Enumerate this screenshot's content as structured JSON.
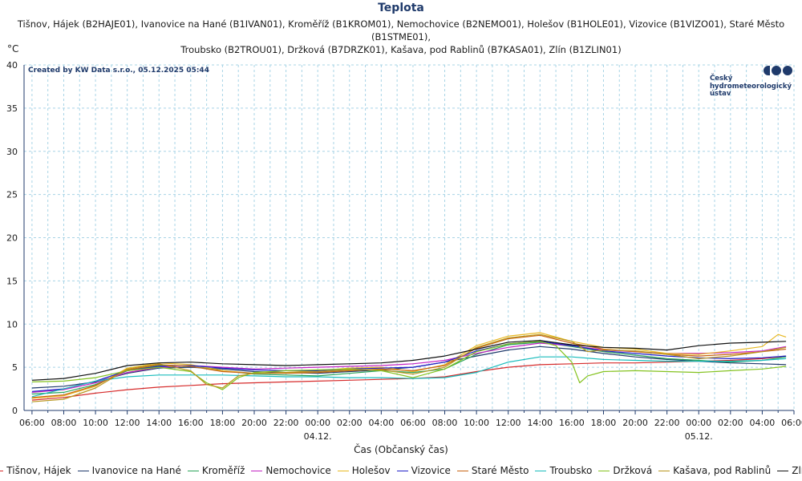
{
  "chart_data": {
    "type": "line",
    "title": "Teplota",
    "subtitle_line1": "Tišnov, Hájek (B2HAJE01), Ivanovice na Hané (B1IVAN01), Kroměříž (B1KROM01), Nemochovice (B2NEMO01), Holešov (B1HOLE01), Vizovice (B1VIZO01), Staré Město (B1STME01),",
    "subtitle_line2": "Troubsko (B2TROU01), Držková (B7DRZK01), Kašava, pod Rablinů (B7KASA01), Zlín (B1ZLIN01)",
    "ylabel": "°C",
    "xlabel": "Čas (Občanský čas)",
    "credit": "Created by KW Data s.r.o., 05.12.2025 05:44",
    "ylim": [
      0,
      40
    ],
    "yticks": [
      "0",
      "5",
      "10",
      "15",
      "20",
      "25",
      "30",
      "35",
      "40"
    ],
    "xlim": [
      5.5,
      54
    ],
    "xticks": [
      {
        "h": 6,
        "label": "06:00"
      },
      {
        "h": 8,
        "label": "08:00"
      },
      {
        "h": 10,
        "label": "10:00"
      },
      {
        "h": 12,
        "label": "12:00"
      },
      {
        "h": 14,
        "label": "14:00"
      },
      {
        "h": 16,
        "label": "16:00"
      },
      {
        "h": 18,
        "label": "18:00"
      },
      {
        "h": 20,
        "label": "20:00"
      },
      {
        "h": 22,
        "label": "22:00"
      },
      {
        "h": 24,
        "label": "00:00"
      },
      {
        "h": 26,
        "label": "02:00"
      },
      {
        "h": 28,
        "label": "04:00"
      },
      {
        "h": 30,
        "label": "06:00"
      },
      {
        "h": 32,
        "label": "08:00"
      },
      {
        "h": 34,
        "label": "10:00"
      },
      {
        "h": 36,
        "label": "12:00"
      },
      {
        "h": 38,
        "label": "14:00"
      },
      {
        "h": 40,
        "label": "16:00"
      },
      {
        "h": 42,
        "label": "18:00"
      },
      {
        "h": 44,
        "label": "20:00"
      },
      {
        "h": 46,
        "label": "22:00"
      },
      {
        "h": 48,
        "label": "00:00"
      },
      {
        "h": 50,
        "label": "02:00"
      },
      {
        "h": 52,
        "label": "04:00"
      },
      {
        "h": 54,
        "label": "06:00"
      }
    ],
    "date_labels": [
      {
        "h": 24,
        "label": "04.12."
      },
      {
        "h": 48,
        "label": "05.12."
      }
    ],
    "grid": true,
    "legend_position": "bottom",
    "series": [
      {
        "name": "Tišnov, Hájek",
        "color": "#d62a2a",
        "x": [
          6,
          8,
          10,
          12,
          14,
          16,
          18,
          20,
          22,
          24,
          26,
          28,
          30,
          32,
          34,
          36,
          38,
          40,
          42,
          44,
          46,
          48,
          50,
          52,
          53.5
        ],
        "y": [
          1.2,
          1.5,
          2.0,
          2.4,
          2.7,
          2.9,
          3.1,
          3.2,
          3.3,
          3.4,
          3.5,
          3.6,
          3.7,
          3.9,
          4.5,
          5.0,
          5.3,
          5.4,
          5.5,
          5.5,
          5.6,
          5.7,
          5.8,
          6.0,
          6.3
        ]
      },
      {
        "name": "Ivanovice na Hané",
        "color": "#1f3a6b",
        "x": [
          6,
          8,
          10,
          12,
          14,
          16,
          18,
          20,
          22,
          24,
          26,
          28,
          30,
          32,
          34,
          36,
          38,
          40,
          42,
          44,
          46,
          48,
          50,
          52,
          53.5
        ],
        "y": [
          2.6,
          2.8,
          3.3,
          4.3,
          4.9,
          5.0,
          4.8,
          4.5,
          4.4,
          4.3,
          4.5,
          4.7,
          5.0,
          5.6,
          6.3,
          7.0,
          7.4,
          7.1,
          6.6,
          6.2,
          5.9,
          5.7,
          5.5,
          5.4,
          5.3
        ]
      },
      {
        "name": "Kroměříž",
        "color": "#2ba45a",
        "x": [
          6,
          8,
          10,
          12,
          14,
          16,
          18,
          20,
          22,
          24,
          26,
          28,
          30,
          32,
          34,
          36,
          38,
          40,
          42,
          44,
          46,
          48,
          50,
          52,
          53.5
        ],
        "y": [
          1.9,
          2.1,
          3.0,
          4.6,
          5.2,
          5.1,
          4.6,
          4.2,
          4.1,
          4.0,
          4.3,
          4.6,
          4.4,
          4.8,
          6.5,
          7.6,
          7.9,
          7.4,
          6.8,
          6.4,
          6.0,
          5.8,
          5.6,
          5.8,
          6.2
        ]
      },
      {
        "name": "Nemochovice",
        "color": "#c424c4",
        "x": [
          6,
          8,
          10,
          12,
          14,
          16,
          18,
          20,
          22,
          24,
          26,
          28,
          30,
          32,
          34,
          36,
          38,
          40,
          42,
          44,
          46,
          48,
          50,
          52,
          53.5
        ],
        "y": [
          2.1,
          2.4,
          3.2,
          4.4,
          5.0,
          5.2,
          5.0,
          4.8,
          4.9,
          5.0,
          5.1,
          5.2,
          5.4,
          5.8,
          6.6,
          7.3,
          7.8,
          7.5,
          7.0,
          6.8,
          6.6,
          6.6,
          6.7,
          6.9,
          7.4
        ]
      },
      {
        "name": "Holešov",
        "color": "#e8b923",
        "x": [
          6,
          8,
          10,
          12,
          14,
          16,
          18,
          20,
          22,
          24,
          26,
          28,
          30,
          32,
          34,
          36,
          38,
          40,
          42,
          44,
          46,
          48,
          50,
          52,
          53,
          53.5
        ],
        "y": [
          1.4,
          1.7,
          2.8,
          4.9,
          5.5,
          5.3,
          4.6,
          4.3,
          4.4,
          4.6,
          4.9,
          5.0,
          4.5,
          5.3,
          7.5,
          8.6,
          9.0,
          8.0,
          7.3,
          7.1,
          6.6,
          6.5,
          6.9,
          7.4,
          8.8,
          8.5
        ]
      },
      {
        "name": "Vizovice",
        "color": "#2020c8",
        "x": [
          6,
          8,
          10,
          12,
          14,
          16,
          18,
          20,
          22,
          24,
          26,
          28,
          30,
          32,
          34,
          36,
          38,
          40,
          42,
          44,
          46,
          48,
          50,
          52,
          53.5
        ],
        "y": [
          2.2,
          2.5,
          3.4,
          4.6,
          5.1,
          5.2,
          4.9,
          4.7,
          4.6,
          4.6,
          4.8,
          4.9,
          5.0,
          5.6,
          6.9,
          7.7,
          8.0,
          7.5,
          6.9,
          6.6,
          6.3,
          6.1,
          6.0,
          6.1,
          6.3
        ]
      },
      {
        "name": "Staré Město",
        "color": "#c86414",
        "x": [
          6,
          8,
          10,
          12,
          14,
          16,
          18,
          20,
          22,
          24,
          26,
          28,
          30,
          32,
          34,
          36,
          38,
          40,
          42,
          44,
          46,
          48,
          50,
          52,
          53.5
        ],
        "y": [
          1.5,
          1.8,
          2.9,
          4.7,
          5.3,
          5.1,
          4.5,
          4.3,
          4.3,
          4.4,
          4.6,
          4.8,
          4.6,
          5.2,
          7.2,
          8.3,
          8.7,
          7.8,
          7.1,
          6.8,
          6.5,
          6.3,
          6.5,
          6.8,
          7.1
        ]
      },
      {
        "name": "Troubsko",
        "color": "#19bcbc",
        "x": [
          6,
          8,
          10,
          12,
          14,
          16,
          18,
          20,
          22,
          24,
          26,
          28,
          30,
          32,
          34,
          36,
          38,
          40,
          42,
          44,
          46,
          48,
          50,
          52,
          53.5
        ],
        "y": [
          1.6,
          2.5,
          3.4,
          3.9,
          4.1,
          4.1,
          4.1,
          4.0,
          3.9,
          3.9,
          3.8,
          3.8,
          3.7,
          3.8,
          4.4,
          5.6,
          6.2,
          6.2,
          5.9,
          5.8,
          5.7,
          5.7,
          5.7,
          5.8,
          6.0
        ]
      },
      {
        "name": "Držková",
        "color": "#84c21f",
        "x": [
          6,
          8,
          10,
          12,
          14,
          16,
          17,
          18,
          19,
          20,
          22,
          24,
          26,
          28,
          30,
          32,
          34,
          36,
          38,
          39,
          40,
          40.5,
          41,
          42,
          44,
          46,
          48,
          50,
          52,
          53.5
        ],
        "y": [
          3.3,
          3.4,
          3.8,
          4.6,
          5.0,
          4.5,
          3.2,
          2.4,
          3.8,
          4.4,
          4.6,
          4.7,
          4.8,
          4.6,
          3.8,
          4.8,
          6.8,
          7.7,
          8.0,
          7.5,
          5.6,
          3.2,
          4.0,
          4.5,
          4.6,
          4.5,
          4.4,
          4.6,
          4.8,
          5.1
        ]
      },
      {
        "name": "Kašava, pod Rablinů",
        "color": "#b8961e",
        "x": [
          6,
          8,
          10,
          12,
          14,
          16,
          17,
          18,
          19,
          20,
          22,
          24,
          26,
          28,
          30,
          32,
          34,
          36,
          38,
          40,
          41,
          42,
          44,
          46,
          48,
          50,
          52,
          53.5
        ],
        "y": [
          1.0,
          1.3,
          2.6,
          4.8,
          5.4,
          4.6,
          3.0,
          2.6,
          4.0,
          4.3,
          4.4,
          4.5,
          4.7,
          4.7,
          4.2,
          5.0,
          7.3,
          8.4,
          8.8,
          8.0,
          6.8,
          7.0,
          6.9,
          6.5,
          6.0,
          6.3,
          6.8,
          7.3
        ]
      },
      {
        "name": "Zlín",
        "color": "#111111",
        "x": [
          6,
          8,
          10,
          12,
          14,
          16,
          18,
          20,
          22,
          24,
          26,
          28,
          30,
          32,
          34,
          36,
          38,
          40,
          42,
          44,
          46,
          48,
          50,
          52,
          53.5
        ],
        "y": [
          3.5,
          3.7,
          4.3,
          5.2,
          5.5,
          5.6,
          5.4,
          5.3,
          5.2,
          5.3,
          5.4,
          5.5,
          5.8,
          6.3,
          7.1,
          7.9,
          8.1,
          7.6,
          7.3,
          7.2,
          7.0,
          7.5,
          7.8,
          7.9,
          8.0
        ]
      }
    ]
  }
}
